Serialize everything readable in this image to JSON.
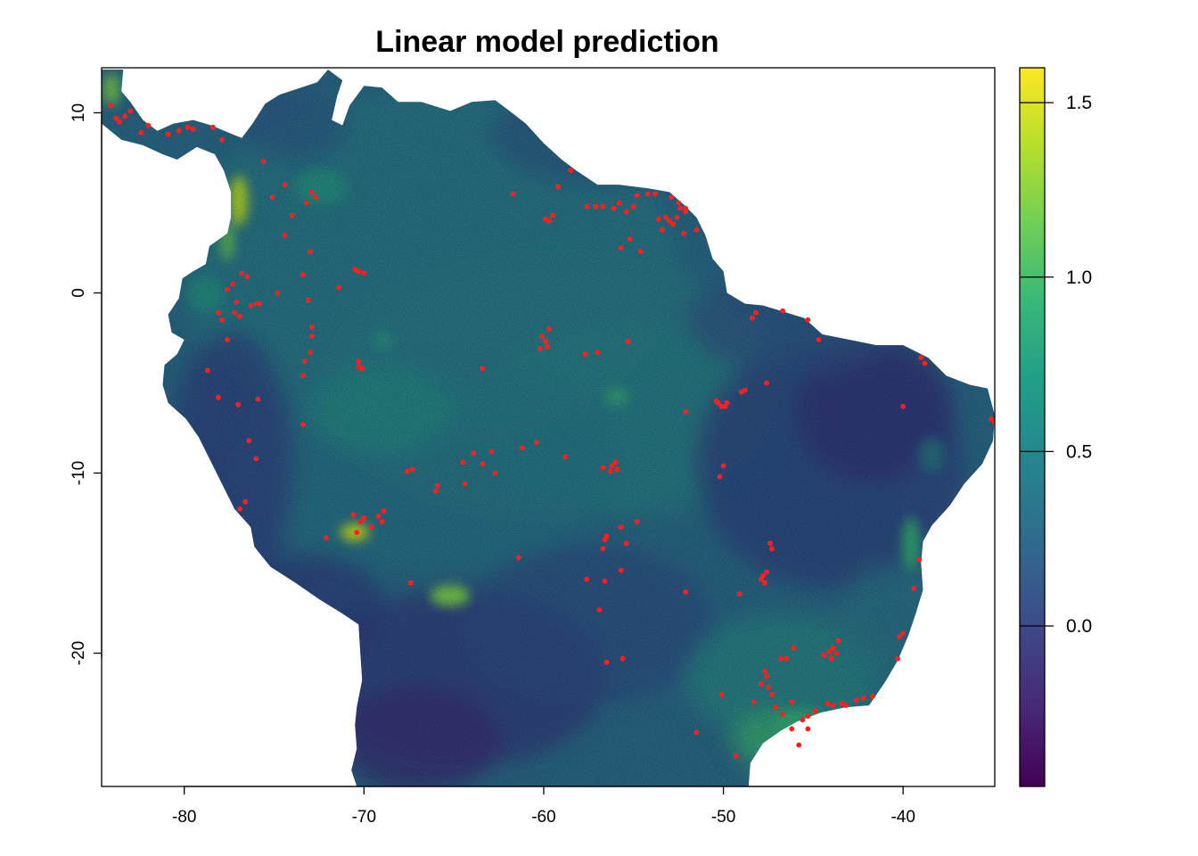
{
  "title": "Linear model prediction",
  "map": {
    "x_ticks": [
      "-80",
      "-70",
      "-60",
      "-50",
      "-40"
    ],
    "y_ticks": [
      "10",
      "0",
      "-10",
      "-20"
    ],
    "x_tick_values": [
      -80,
      -70,
      -60,
      -50,
      -40
    ],
    "y_tick_values": [
      10,
      0,
      -10,
      -20
    ],
    "xlim": [
      -84.6,
      -34.9
    ],
    "ylim": [
      -27.4,
      12.5
    ],
    "raster": "continuous prediction surface, viridis palette"
  },
  "legend": {
    "labels": [
      "1.5",
      "1.0",
      "0.5",
      "0.0"
    ],
    "values": [
      1.5,
      1.0,
      0.5,
      0.0
    ],
    "range": [
      -0.46,
      1.6
    ],
    "palette": [
      "#440154",
      "#482878",
      "#3e4989",
      "#31688e",
      "#26828e",
      "#1f9e89",
      "#35b779",
      "#6ece58",
      "#b5de2b",
      "#fde725"
    ]
  },
  "colors": {
    "point": "#ff1f1f",
    "frame": "#000000"
  },
  "occurrences": [
    [
      -84.1,
      10.4
    ],
    [
      -83.8,
      9.7
    ],
    [
      -83.6,
      9.5
    ],
    [
      -83.3,
      9.8
    ],
    [
      -83.0,
      10.1
    ],
    [
      -82.4,
      8.9
    ],
    [
      -82.0,
      9.3
    ],
    [
      -80.9,
      8.8
    ],
    [
      -80.3,
      9.0
    ],
    [
      -79.8,
      9.2
    ],
    [
      -79.5,
      9.1
    ],
    [
      -78.4,
      9.2
    ],
    [
      -77.9,
      8.5
    ],
    [
      -75.6,
      7.3
    ],
    [
      -74.4,
      6.0
    ],
    [
      -75.1,
      5.3
    ],
    [
      -73.2,
      5.0
    ],
    [
      -72.7,
      5.3
    ],
    [
      -72.9,
      5.6
    ],
    [
      -74.0,
      4.3
    ],
    [
      -74.4,
      3.2
    ],
    [
      -73.0,
      2.3
    ],
    [
      -77.2,
      -1.1
    ],
    [
      -76.9,
      -1.3
    ],
    [
      -76.3,
      -0.7
    ],
    [
      -76.0,
      -0.6
    ],
    [
      -76.5,
      0.9
    ],
    [
      -77.1,
      -0.5
    ],
    [
      -77.3,
      0.5
    ],
    [
      -76.8,
      1.1
    ],
    [
      -77.6,
      0.2
    ],
    [
      -77.9,
      -1.5
    ],
    [
      -78.1,
      -1.1
    ],
    [
      -75.8,
      -0.6
    ],
    [
      -74.8,
      0.0
    ],
    [
      -70.3,
      1.2
    ],
    [
      -70.0,
      1.1
    ],
    [
      -70.5,
      1.3
    ],
    [
      -71.4,
      0.3
    ],
    [
      -73.1,
      -0.4
    ],
    [
      -73.4,
      1.0
    ],
    [
      -70.3,
      -3.8
    ],
    [
      -70.1,
      -4.2
    ],
    [
      -70.3,
      -4.1
    ],
    [
      -73.0,
      -3.3
    ],
    [
      -73.3,
      -3.8
    ],
    [
      -73.4,
      -4.6
    ],
    [
      -72.9,
      -2.4
    ],
    [
      -72.9,
      -1.9
    ],
    [
      -78.7,
      -4.3
    ],
    [
      -77.6,
      -2.6
    ],
    [
      -78.1,
      -5.8
    ],
    [
      -77.0,
      -6.2
    ],
    [
      -75.9,
      -5.9
    ],
    [
      -73.4,
      -7.3
    ],
    [
      -76.0,
      -9.2
    ],
    [
      -76.4,
      -8.2
    ],
    [
      -76.6,
      -11.6
    ],
    [
      -76.9,
      -12.0
    ],
    [
      -72.1,
      -13.6
    ],
    [
      -70.6,
      -12.3
    ],
    [
      -70.2,
      -12.7
    ],
    [
      -69.6,
      -13.0
    ],
    [
      -69.2,
      -12.4
    ],
    [
      -69.0,
      -12.7
    ],
    [
      -70.4,
      -13.3
    ],
    [
      -70.0,
      -12.5
    ],
    [
      -68.9,
      -12.1
    ],
    [
      -67.6,
      -9.9
    ],
    [
      -67.3,
      -9.8
    ],
    [
      -65.9,
      -10.7
    ],
    [
      -66.0,
      -11.0
    ],
    [
      -64.5,
      -9.4
    ],
    [
      -64.4,
      -10.6
    ],
    [
      -63.9,
      -8.9
    ],
    [
      -62.9,
      -8.8
    ],
    [
      -63.4,
      -9.5
    ],
    [
      -62.7,
      -10.0
    ],
    [
      -61.2,
      -8.6
    ],
    [
      -60.4,
      -8.3
    ],
    [
      -58.8,
      -9.1
    ],
    [
      -63.4,
      -4.2
    ],
    [
      -67.4,
      -16.1
    ],
    [
      -61.4,
      -14.7
    ],
    [
      -60.1,
      -2.4
    ],
    [
      -59.9,
      -2.7
    ],
    [
      -60.2,
      -3.1
    ],
    [
      -59.8,
      -3.0
    ],
    [
      -59.7,
      -2.0
    ],
    [
      -57.7,
      -3.4
    ],
    [
      -57.0,
      -3.3
    ],
    [
      -55.3,
      -2.7
    ],
    [
      -57.6,
      4.8
    ],
    [
      -57.1,
      4.8
    ],
    [
      -56.7,
      4.8
    ],
    [
      -56.1,
      4.7
    ],
    [
      -55.8,
      5.0
    ],
    [
      -55.0,
      4.8
    ],
    [
      -55.4,
      4.5
    ],
    [
      -54.8,
      5.4
    ],
    [
      -54.2,
      5.5
    ],
    [
      -53.8,
      5.5
    ],
    [
      -52.9,
      5.3
    ],
    [
      -52.5,
      5.0
    ],
    [
      -52.4,
      4.7
    ],
    [
      -52.1,
      4.5
    ],
    [
      -52.6,
      4.2
    ],
    [
      -52.1,
      4.7
    ],
    [
      -53.2,
      4.2
    ],
    [
      -53.0,
      4.0
    ],
    [
      -53.6,
      4.1
    ],
    [
      -52.8,
      3.8
    ],
    [
      -52.2,
      3.3
    ],
    [
      -51.5,
      3.5
    ],
    [
      -53.4,
      3.5
    ],
    [
      -55.2,
      3.0
    ],
    [
      -55.7,
      2.5
    ],
    [
      -54.6,
      2.3
    ],
    [
      -59.5,
      4.3
    ],
    [
      -59.7,
      4.0
    ],
    [
      -59.9,
      4.1
    ],
    [
      -61.7,
      5.5
    ],
    [
      -59.2,
      5.9
    ],
    [
      -58.5,
      6.8
    ],
    [
      -56.7,
      -9.7
    ],
    [
      -56.2,
      -9.6
    ],
    [
      -56.0,
      -9.4
    ],
    [
      -55.9,
      -9.8
    ],
    [
      -56.3,
      -9.9
    ],
    [
      -50.3,
      -6.1
    ],
    [
      -50.1,
      -6.3
    ],
    [
      -49.9,
      -6.3
    ],
    [
      -49.8,
      -6.1
    ],
    [
      -50.4,
      -6.0
    ],
    [
      -49.0,
      -5.5
    ],
    [
      -48.8,
      -5.4
    ],
    [
      -47.6,
      -5.0
    ],
    [
      -52.1,
      -6.6
    ],
    [
      -50.0,
      -9.6
    ],
    [
      -50.2,
      -10.2
    ],
    [
      -48.4,
      -1.4
    ],
    [
      -48.2,
      -1.1
    ],
    [
      -46.7,
      -1.0
    ],
    [
      -45.3,
      -1.5
    ],
    [
      -56.6,
      -13.7
    ],
    [
      -56.7,
      -14.2
    ],
    [
      -56.5,
      -13.5
    ],
    [
      -55.7,
      -13.0
    ],
    [
      -55.4,
      -13.9
    ],
    [
      -54.8,
      -12.7
    ],
    [
      -55.7,
      -15.4
    ],
    [
      -56.6,
      -16.0
    ],
    [
      -57.6,
      -15.9
    ],
    [
      -56.9,
      -17.6
    ],
    [
      -56.5,
      -20.5
    ],
    [
      -55.6,
      -20.3
    ],
    [
      -52.1,
      -16.6
    ],
    [
      -49.1,
      -16.7
    ],
    [
      -47.8,
      -15.7
    ],
    [
      -47.7,
      -16.1
    ],
    [
      -47.9,
      -15.9
    ],
    [
      -47.6,
      -15.5
    ],
    [
      -47.3,
      -14.2
    ],
    [
      -47.4,
      -13.9
    ],
    [
      -47.7,
      -21.0
    ],
    [
      -47.6,
      -21.3
    ],
    [
      -47.9,
      -21.7
    ],
    [
      -47.5,
      -21.9
    ],
    [
      -47.3,
      -22.3
    ],
    [
      -46.8,
      -20.3
    ],
    [
      -46.5,
      -20.3
    ],
    [
      -46.1,
      -19.7
    ],
    [
      -46.2,
      -22.7
    ],
    [
      -47.1,
      -23.0
    ],
    [
      -46.7,
      -23.4
    ],
    [
      -45.6,
      -23.7
    ],
    [
      -45.3,
      -23.5
    ],
    [
      -44.9,
      -23.2
    ],
    [
      -44.2,
      -22.8
    ],
    [
      -43.9,
      -22.9
    ],
    [
      -43.4,
      -22.8
    ],
    [
      -43.2,
      -22.9
    ],
    [
      -42.6,
      -22.6
    ],
    [
      -42.2,
      -22.5
    ],
    [
      -41.7,
      -22.4
    ],
    [
      -44.1,
      -19.9
    ],
    [
      -43.9,
      -19.7
    ],
    [
      -43.7,
      -20.0
    ],
    [
      -44.0,
      -20.3
    ],
    [
      -43.6,
      -19.3
    ],
    [
      -44.4,
      -20.1
    ],
    [
      -40.3,
      -20.3
    ],
    [
      -40.2,
      -19.1
    ],
    [
      -40.0,
      -18.9
    ],
    [
      -39.4,
      -16.4
    ],
    [
      -39.1,
      -14.8
    ],
    [
      -50.1,
      -22.3
    ],
    [
      -48.3,
      -22.7
    ],
    [
      -45.8,
      -25.1
    ],
    [
      -45.3,
      -24.2
    ],
    [
      -46.2,
      -24.2
    ],
    [
      -49.3,
      -25.7
    ],
    [
      -51.5,
      -24.4
    ],
    [
      -35.1,
      -7.0
    ],
    [
      -34.9,
      -7.2
    ],
    [
      -39.0,
      -3.6
    ],
    [
      -38.8,
      -3.9
    ],
    [
      -40.0,
      -6.3
    ],
    [
      -44.7,
      -2.6
    ]
  ]
}
